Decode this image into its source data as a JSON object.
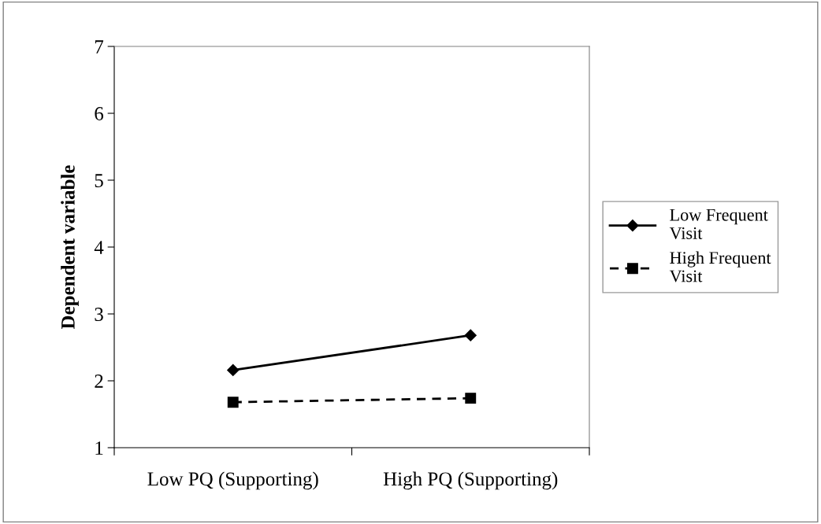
{
  "chart_data": {
    "type": "line",
    "ylabel": "Dependent variable",
    "categories": [
      "Low PQ (Supporting)",
      "High PQ (Supporting)"
    ],
    "series": [
      {
        "name": "Low Frequent Visit",
        "color": "#000000",
        "values": [
          2.16,
          2.68
        ],
        "marker": "diamond",
        "line_style": "solid"
      },
      {
        "name": "High Frequent Visit",
        "color": "#000000",
        "values": [
          1.68,
          1.74
        ],
        "marker": "square",
        "line_style": "dashed"
      }
    ],
    "ylim": [
      1,
      7
    ],
    "yticks": [
      1,
      2,
      3,
      4,
      5,
      6,
      7
    ],
    "grid": false,
    "legend": "right"
  }
}
